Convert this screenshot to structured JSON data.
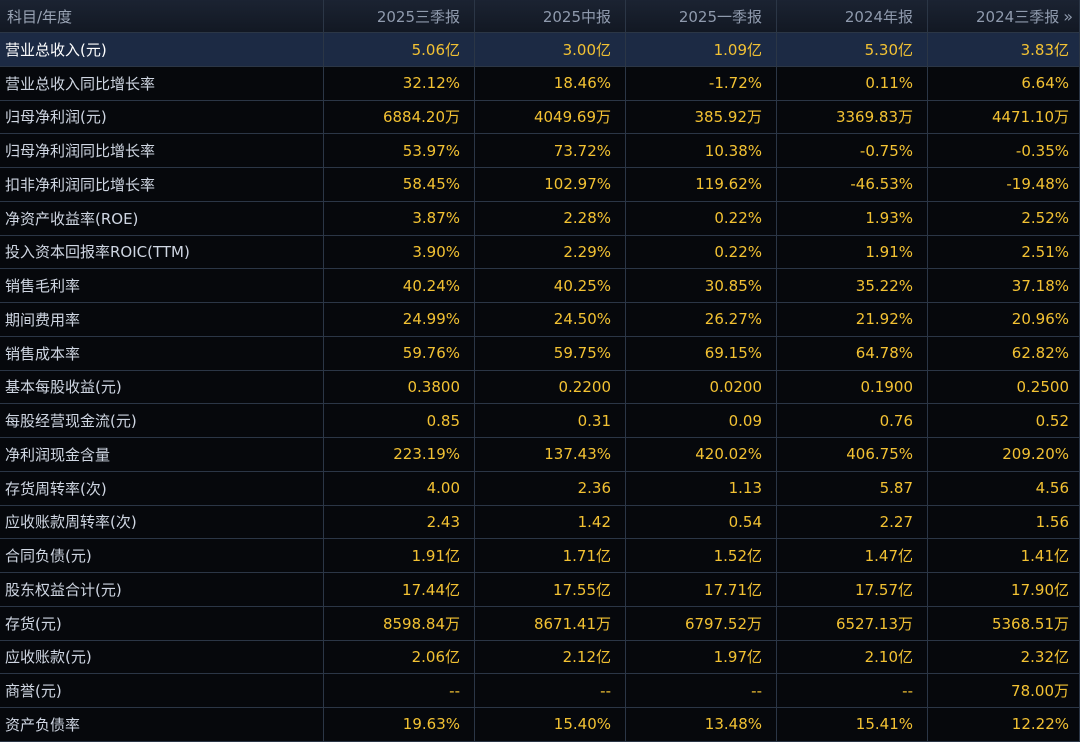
{
  "header": {
    "first": "科目/年度",
    "periods": [
      "2025三季报",
      "2025中报",
      "2025一季报",
      "2024年报",
      "2024三季报"
    ],
    "more_icon": "»"
  },
  "rows": [
    {
      "label": "营业总收入(元)",
      "values": [
        "5.06亿",
        "3.00亿",
        "1.09亿",
        "5.30亿",
        "3.83亿"
      ]
    },
    {
      "label": "营业总收入同比增长率",
      "values": [
        "32.12%",
        "18.46%",
        "-1.72%",
        "0.11%",
        "6.64%"
      ]
    },
    {
      "label": "归母净利润(元)",
      "values": [
        "6884.20万",
        "4049.69万",
        "385.92万",
        "3369.83万",
        "4471.10万"
      ]
    },
    {
      "label": "归母净利润同比增长率",
      "values": [
        "53.97%",
        "73.72%",
        "10.38%",
        "-0.75%",
        "-0.35%"
      ]
    },
    {
      "label": "扣非净利润同比增长率",
      "values": [
        "58.45%",
        "102.97%",
        "119.62%",
        "-46.53%",
        "-19.48%"
      ]
    },
    {
      "label": "净资产收益率(ROE)",
      "values": [
        "3.87%",
        "2.28%",
        "0.22%",
        "1.93%",
        "2.52%"
      ]
    },
    {
      "label": "投入资本回报率ROIC(TTM)",
      "values": [
        "3.90%",
        "2.29%",
        "0.22%",
        "1.91%",
        "2.51%"
      ]
    },
    {
      "label": "销售毛利率",
      "values": [
        "40.24%",
        "40.25%",
        "30.85%",
        "35.22%",
        "37.18%"
      ]
    },
    {
      "label": "期间费用率",
      "values": [
        "24.99%",
        "24.50%",
        "26.27%",
        "21.92%",
        "20.96%"
      ]
    },
    {
      "label": "销售成本率",
      "values": [
        "59.76%",
        "59.75%",
        "69.15%",
        "64.78%",
        "62.82%"
      ]
    },
    {
      "label": "基本每股收益(元)",
      "values": [
        "0.3800",
        "0.2200",
        "0.0200",
        "0.1900",
        "0.2500"
      ]
    },
    {
      "label": "每股经营现金流(元)",
      "values": [
        "0.85",
        "0.31",
        "0.09",
        "0.76",
        "0.52"
      ]
    },
    {
      "label": "净利润现金含量",
      "values": [
        "223.19%",
        "137.43%",
        "420.02%",
        "406.75%",
        "209.20%"
      ]
    },
    {
      "label": "存货周转率(次)",
      "values": [
        "4.00",
        "2.36",
        "1.13",
        "5.87",
        "4.56"
      ]
    },
    {
      "label": "应收账款周转率(次)",
      "values": [
        "2.43",
        "1.42",
        "0.54",
        "2.27",
        "1.56"
      ]
    },
    {
      "label": "合同负债(元)",
      "values": [
        "1.91亿",
        "1.71亿",
        "1.52亿",
        "1.47亿",
        "1.41亿"
      ]
    },
    {
      "label": "股东权益合计(元)",
      "values": [
        "17.44亿",
        "17.55亿",
        "17.71亿",
        "17.57亿",
        "17.90亿"
      ]
    },
    {
      "label": "存货(元)",
      "values": [
        "8598.84万",
        "8671.41万",
        "6797.52万",
        "6527.13万",
        "5368.51万"
      ]
    },
    {
      "label": "应收账款(元)",
      "values": [
        "2.06亿",
        "2.12亿",
        "1.97亿",
        "2.10亿",
        "2.32亿"
      ]
    },
    {
      "label": "商誉(元)",
      "values": [
        "--",
        "--",
        "--",
        "--",
        "78.00万"
      ]
    },
    {
      "label": "资产负债率",
      "values": [
        "19.63%",
        "15.40%",
        "13.48%",
        "15.41%",
        "12.22%"
      ]
    }
  ],
  "highlight_row": 0
}
